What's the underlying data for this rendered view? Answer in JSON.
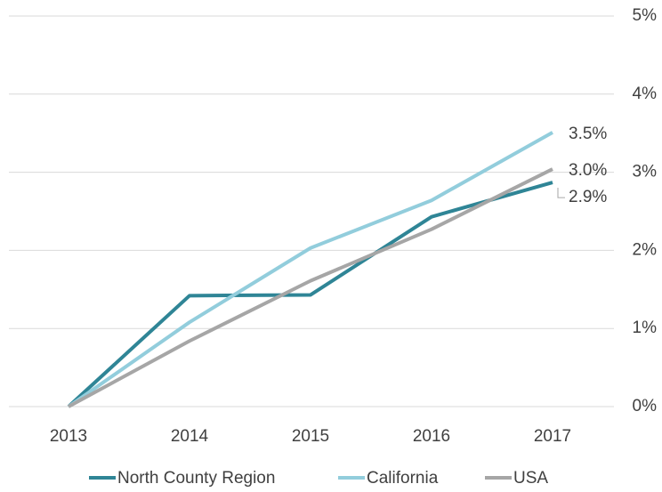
{
  "chart_data": {
    "type": "line",
    "categories": [
      "2013",
      "2014",
      "2015",
      "2016",
      "2017"
    ],
    "series": [
      {
        "name": "North County Region",
        "color": "#2f8596",
        "values": [
          0,
          1.42,
          1.43,
          2.43,
          2.87
        ],
        "value_labels": [
          null,
          null,
          null,
          null,
          "2.9%"
        ]
      },
      {
        "name": "California",
        "color": "#92cddc",
        "values": [
          0,
          1.08,
          2.03,
          2.64,
          3.51
        ],
        "value_labels": [
          null,
          null,
          null,
          null,
          "3.5%"
        ]
      },
      {
        "name": "USA",
        "color": "#a6a6a6",
        "values": [
          0,
          0.84,
          1.61,
          2.27,
          3.04
        ],
        "value_labels": [
          null,
          null,
          null,
          null,
          "3.0%"
        ]
      }
    ],
    "ylim": [
      0,
      5
    ],
    "yticks": [
      {
        "value": 0,
        "label": "0%"
      },
      {
        "value": 1,
        "label": "1%"
      },
      {
        "value": 2,
        "label": "2%"
      },
      {
        "value": 3,
        "label": "3%"
      },
      {
        "value": 4,
        "label": "4%"
      },
      {
        "value": 5,
        "label": "5%"
      }
    ],
    "grid": true,
    "legend": "bottom"
  }
}
